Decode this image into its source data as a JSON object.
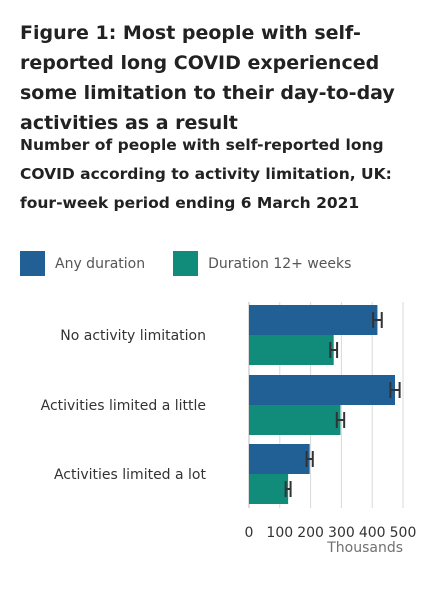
{
  "chart_data": {
    "type": "bar",
    "orientation": "horizontal",
    "title": "Figure 1: Most people with self-reported long COVID experienced some limitation to their day-to-day activities as a result",
    "subtitle": "Number of people with self-reported long COVID according to activity limitation, UK: four-week period ending 6 March 2021",
    "categories": [
      "No activity limitation",
      "Activities limited a little",
      "Activities limited a lot"
    ],
    "series": [
      {
        "name": "Any duration",
        "color": "#206095",
        "values": [
          417,
          474,
          197
        ],
        "error": [
          14,
          15,
          10
        ]
      },
      {
        "name": "Duration 12+ weeks",
        "color": "#118C7B",
        "values": [
          275,
          297,
          127
        ],
        "error": [
          11,
          12,
          8
        ]
      }
    ],
    "xlim": [
      0,
      500
    ],
    "xticks": [
      0,
      100,
      200,
      300,
      400,
      500
    ],
    "xlabel": "Thousands",
    "legend_position": "top-left",
    "grid": true
  }
}
